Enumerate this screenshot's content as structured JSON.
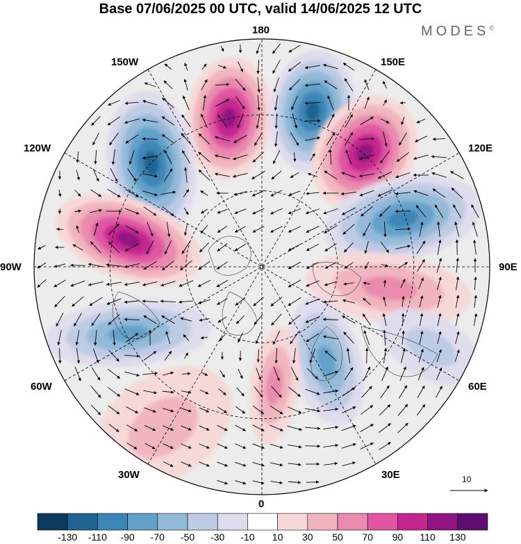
{
  "title": "Base 07/06/2025 00 UTC, valid 14/06/2025 12 UTC",
  "brand": "MODES",
  "brand_mark": "©",
  "longitude_labels": {
    "top": "180",
    "bottom": "0",
    "left": "90W",
    "right": "90E",
    "w150": "150W",
    "e150": "150E",
    "w120": "120W",
    "e120": "120E",
    "w60": "60W",
    "e60": "60E",
    "w30": "30W",
    "e30": "30E"
  },
  "reference_vector": {
    "value": "10",
    "icon": "right-arrow-icon"
  },
  "colorbar": {
    "labels": [
      "-130",
      "-110",
      "-90",
      "-70",
      "-50",
      "-30",
      "-10",
      "10",
      "30",
      "50",
      "70",
      "90",
      "110",
      "130"
    ],
    "colors": [
      "#0d3a5c",
      "#1f6391",
      "#3c86b7",
      "#64a1c9",
      "#93bad8",
      "#bdcbe4",
      "#dfdced",
      "#ffffff",
      "#f7d8d8",
      "#f1b5bf",
      "#e98aae",
      "#df56a3",
      "#c4258e",
      "#901481",
      "#5e0d70"
    ]
  },
  "colors": {
    "map_background": "#ececec",
    "anomaly_positive": "#c4258e",
    "anomaly_negative": "#1f6391"
  }
}
